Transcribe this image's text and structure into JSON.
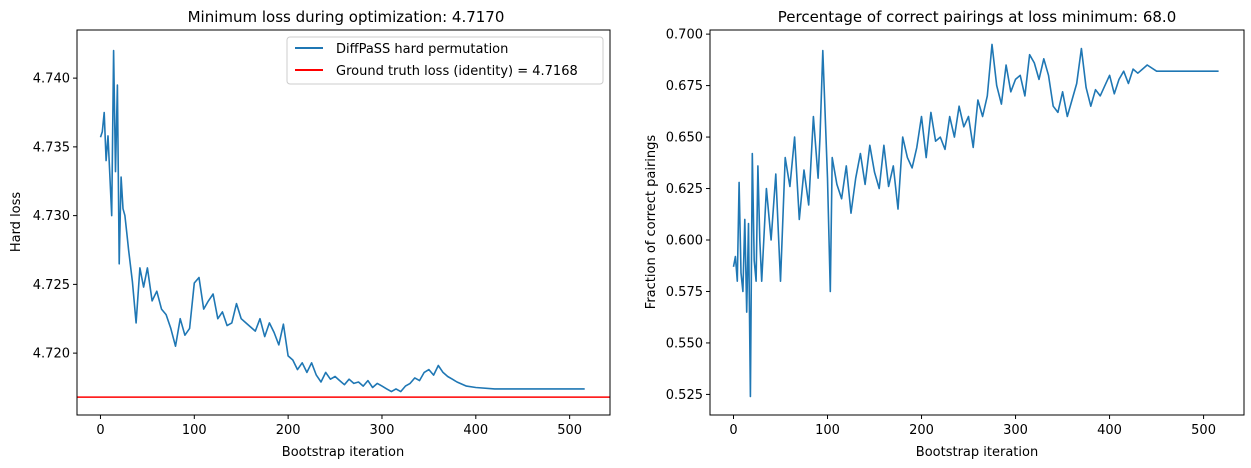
{
  "figure": {
    "background": "#ffffff"
  },
  "chart_data": [
    {
      "type": "line",
      "title": "Minimum loss during optimization: 4.7170",
      "xlabel": "Bootstrap iteration",
      "ylabel": "Hard loss",
      "xlim": [
        -25,
        543
      ],
      "ylim": [
        4.7155,
        4.7435
      ],
      "xticks": [
        "0",
        "100",
        "200",
        "300",
        "400",
        "500"
      ],
      "xtick_values": [
        0,
        100,
        200,
        300,
        400,
        500
      ],
      "yticks": [
        "4.720",
        "4.725",
        "4.730",
        "4.735",
        "4.740"
      ],
      "ytick_values": [
        4.72,
        4.725,
        4.73,
        4.735,
        4.74
      ],
      "grid": false,
      "legend_position": "top-right",
      "series": [
        {
          "name": "DiffPaSS hard permutation",
          "color": "#1f77b4",
          "x": [
            0,
            2,
            4,
            6,
            8,
            10,
            12,
            14,
            16,
            18,
            20,
            22,
            24,
            26,
            28,
            30,
            34,
            38,
            42,
            46,
            50,
            55,
            60,
            65,
            70,
            75,
            80,
            85,
            90,
            95,
            100,
            105,
            110,
            115,
            120,
            125,
            130,
            135,
            140,
            145,
            150,
            155,
            160,
            165,
            170,
            175,
            180,
            185,
            190,
            195,
            200,
            205,
            210,
            215,
            220,
            225,
            230,
            235,
            240,
            245,
            250,
            255,
            260,
            265,
            270,
            275,
            280,
            285,
            290,
            295,
            300,
            305,
            310,
            315,
            320,
            325,
            330,
            335,
            340,
            345,
            350,
            355,
            360,
            365,
            370,
            375,
            380,
            390,
            400,
            420,
            450,
            480,
            516
          ],
          "y": [
            4.7357,
            4.7361,
            4.7375,
            4.734,
            4.7358,
            4.733,
            4.73,
            4.742,
            4.7332,
            4.7395,
            4.7265,
            4.7328,
            4.7305,
            4.73,
            4.7288,
            4.7275,
            4.7252,
            4.7222,
            4.7262,
            4.7248,
            4.7262,
            4.7238,
            4.7245,
            4.7232,
            4.7228,
            4.7218,
            4.7205,
            4.7225,
            4.7213,
            4.7218,
            4.7251,
            4.7255,
            4.7232,
            4.7238,
            4.7243,
            4.7225,
            4.723,
            4.722,
            4.7222,
            4.7236,
            4.7225,
            4.7222,
            4.7219,
            4.7216,
            4.7225,
            4.7212,
            4.7222,
            4.7215,
            4.7206,
            4.7221,
            4.7198,
            4.7195,
            4.7188,
            4.7193,
            4.7186,
            4.7193,
            4.7184,
            4.7179,
            4.7186,
            4.7181,
            4.7183,
            4.718,
            4.7177,
            4.7181,
            4.7178,
            4.7179,
            4.7176,
            4.718,
            4.7175,
            4.7178,
            4.7176,
            4.7174,
            4.7172,
            4.7174,
            4.7172,
            4.7176,
            4.7178,
            4.7182,
            4.718,
            4.7186,
            4.7188,
            4.7184,
            4.7191,
            4.7186,
            4.7183,
            4.7181,
            4.7179,
            4.7176,
            4.7175,
            4.7174,
            4.7174,
            4.7174,
            4.7174
          ]
        }
      ],
      "hline": {
        "label": "Ground truth loss (identity) = 4.7168",
        "value": 4.7168,
        "color": "#ff0000"
      }
    },
    {
      "type": "line",
      "title": "Percentage of correct pairings at loss minimum: 68.0",
      "xlabel": "Bootstrap iteration",
      "ylabel": "Fraction of correct pairings",
      "xlim": [
        -25,
        543
      ],
      "ylim": [
        0.515,
        0.702
      ],
      "xticks": [
        "0",
        "100",
        "200",
        "300",
        "400",
        "500"
      ],
      "xtick_values": [
        0,
        100,
        200,
        300,
        400,
        500
      ],
      "yticks": [
        "0.525",
        "0.550",
        "0.575",
        "0.600",
        "0.625",
        "0.650",
        "0.675",
        "0.700"
      ],
      "ytick_values": [
        0.525,
        0.55,
        0.575,
        0.6,
        0.625,
        0.65,
        0.675,
        0.7
      ],
      "grid": false,
      "series": [
        {
          "color": "#1f77b4",
          "x": [
            0,
            2,
            4,
            6,
            8,
            10,
            12,
            14,
            16,
            18,
            20,
            22,
            24,
            26,
            28,
            30,
            35,
            40,
            45,
            50,
            55,
            60,
            65,
            70,
            75,
            80,
            85,
            90,
            92,
            95,
            100,
            103,
            105,
            110,
            115,
            120,
            125,
            130,
            135,
            140,
            145,
            150,
            155,
            160,
            165,
            170,
            175,
            180,
            185,
            190,
            195,
            200,
            205,
            210,
            215,
            220,
            225,
            230,
            235,
            240,
            245,
            250,
            255,
            260,
            265,
            270,
            275,
            280,
            285,
            290,
            295,
            300,
            305,
            310,
            315,
            320,
            325,
            330,
            335,
            340,
            345,
            350,
            355,
            360,
            365,
            370,
            375,
            380,
            385,
            390,
            395,
            400,
            405,
            410,
            415,
            420,
            425,
            430,
            435,
            440,
            450,
            480,
            516
          ],
          "y": [
            0.587,
            0.592,
            0.58,
            0.628,
            0.584,
            0.575,
            0.61,
            0.565,
            0.608,
            0.524,
            0.642,
            0.59,
            0.58,
            0.636,
            0.6,
            0.58,
            0.625,
            0.6,
            0.632,
            0.58,
            0.64,
            0.626,
            0.65,
            0.61,
            0.634,
            0.617,
            0.66,
            0.63,
            0.65,
            0.692,
            0.63,
            0.575,
            0.64,
            0.627,
            0.62,
            0.636,
            0.613,
            0.63,
            0.642,
            0.627,
            0.646,
            0.633,
            0.625,
            0.646,
            0.626,
            0.636,
            0.615,
            0.65,
            0.64,
            0.635,
            0.645,
            0.66,
            0.64,
            0.662,
            0.648,
            0.65,
            0.644,
            0.66,
            0.65,
            0.665,
            0.655,
            0.66,
            0.645,
            0.668,
            0.66,
            0.67,
            0.695,
            0.675,
            0.666,
            0.685,
            0.672,
            0.678,
            0.68,
            0.67,
            0.69,
            0.686,
            0.678,
            0.688,
            0.68,
            0.665,
            0.662,
            0.672,
            0.66,
            0.668,
            0.676,
            0.693,
            0.674,
            0.665,
            0.673,
            0.67,
            0.675,
            0.68,
            0.671,
            0.678,
            0.682,
            0.676,
            0.683,
            0.681,
            0.683,
            0.685,
            0.682,
            0.682,
            0.682
          ]
        }
      ]
    }
  ]
}
